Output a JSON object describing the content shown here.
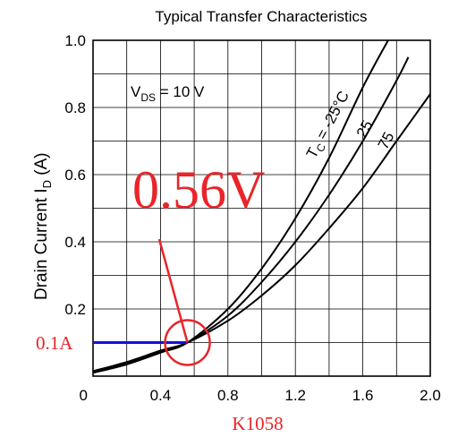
{
  "chart_data": {
    "type": "line",
    "title": "Typical Transfer Characteristics",
    "ylabel_main": "Drain Current  I",
    "ylabel_sub": "D",
    "ylabel_unit": " (A)",
    "xlim": [
      0,
      2.0
    ],
    "ylim": [
      0,
      1.0
    ],
    "x_ticks": [
      "0",
      "0.4",
      "0.8",
      "1.2",
      "1.6",
      "2.0"
    ],
    "y_ticks": [
      "0.2",
      "0.4",
      "0.6",
      "0.8",
      "1.0"
    ],
    "grid": true,
    "condition": {
      "main": "V",
      "sub": "DS",
      "rest": " = 10 V"
    },
    "series": [
      {
        "name": "TC = -25°C",
        "x": [
          0.0,
          0.2,
          0.4,
          0.56,
          0.8,
          1.0,
          1.2,
          1.4,
          1.6,
          1.75
        ],
        "y": [
          0.01,
          0.035,
          0.07,
          0.1,
          0.2,
          0.32,
          0.47,
          0.65,
          0.86,
          1.0
        ]
      },
      {
        "name": "25",
        "x": [
          0.0,
          0.2,
          0.4,
          0.56,
          0.8,
          1.0,
          1.2,
          1.4,
          1.6,
          1.8,
          1.87
        ],
        "y": [
          0.012,
          0.038,
          0.072,
          0.1,
          0.18,
          0.28,
          0.4,
          0.54,
          0.7,
          0.88,
          0.95
        ]
      },
      {
        "name": "75",
        "x": [
          0.0,
          0.2,
          0.4,
          0.56,
          0.8,
          1.0,
          1.2,
          1.4,
          1.6,
          1.8,
          2.0
        ],
        "y": [
          0.015,
          0.042,
          0.076,
          0.1,
          0.165,
          0.24,
          0.33,
          0.44,
          0.56,
          0.7,
          0.84
        ]
      }
    ],
    "curve_labels": {
      "tc_main": "T",
      "tc_sub": "C",
      "tc_rest": " = -25°C",
      "mid": "25",
      "hot": "75"
    },
    "annotations": {
      "voltage_label": "0.56V",
      "current_label": "0.1A",
      "part_number": "K1058",
      "marker_point": {
        "x": 0.56,
        "y": 0.1
      },
      "colors": {
        "red": "#e8252a",
        "blue": "#1010e0"
      }
    }
  }
}
